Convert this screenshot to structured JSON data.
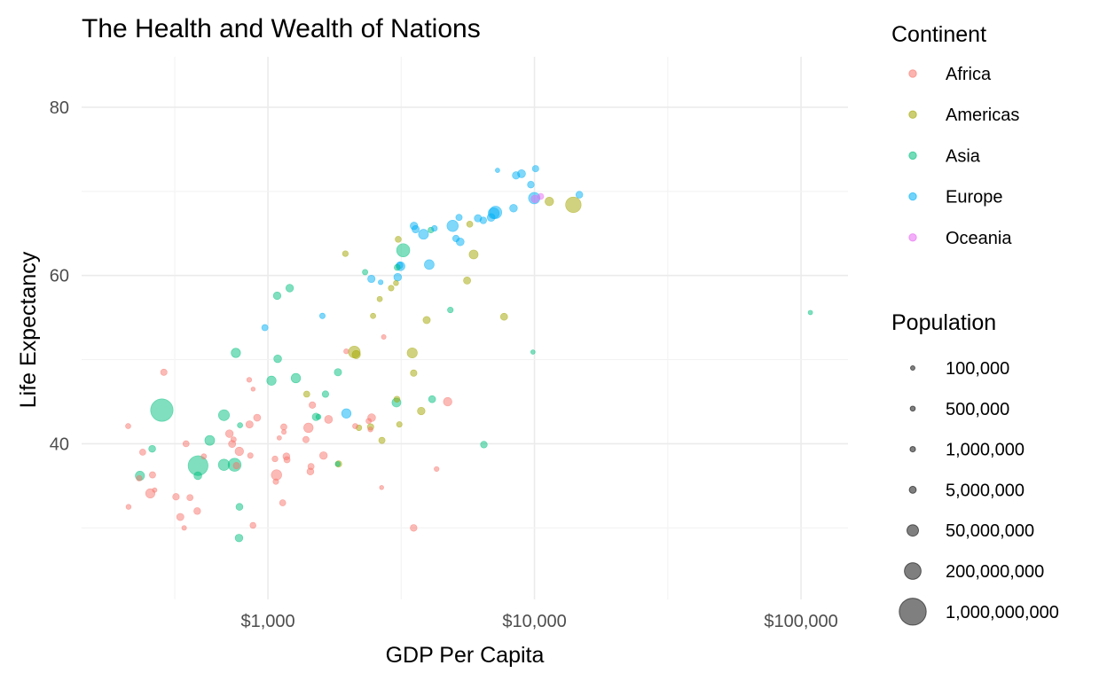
{
  "chart_data": {
    "type": "scatter",
    "title": "The Health and Wealth of Nations",
    "xlabel": "GDP Per Capita",
    "ylabel": "Life Expectancy",
    "x_scale": "log10",
    "xlim": [
      200,
      150000
    ],
    "ylim": [
      21.5,
      86
    ],
    "x_ticks": [
      1000,
      10000,
      100000
    ],
    "x_tick_labels": [
      "$1,000",
      "$10,000",
      "$100,000"
    ],
    "y_ticks": [
      40,
      60,
      80
    ],
    "y_tick_labels": [
      "40",
      "60",
      "80"
    ],
    "grid": true,
    "legend_position": "right",
    "color_legend": {
      "title": "Continent",
      "entries": [
        {
          "label": "Africa",
          "color": "#F8766D"
        },
        {
          "label": "Americas",
          "color": "#A3A500"
        },
        {
          "label": "Asia",
          "color": "#00BF7D"
        },
        {
          "label": "Europe",
          "color": "#00B0F6"
        },
        {
          "label": "Oceania",
          "color": "#E76BF3"
        }
      ]
    },
    "size_legend": {
      "title": "Population",
      "entries": [
        {
          "label": "100,000",
          "value": 100000
        },
        {
          "label": "500,000",
          "value": 500000
        },
        {
          "label": "1,000,000",
          "value": 1000000
        },
        {
          "label": "5,000,000",
          "value": 5000000
        },
        {
          "label": "50,000,000",
          "value": 50000000
        },
        {
          "label": "200,000,000",
          "value": 200000000
        },
        {
          "label": "1,000,000,000",
          "value": 1000000000
        }
      ]
    },
    "series": [
      {
        "name": "Africa",
        "points": [
          {
            "x": 2449,
            "y": 43.1,
            "pop": 9279525
          },
          {
            "x": 3521,
            "y": 30.0,
            "pop": 4232095
          },
          {
            "x": 1063,
            "y": 38.2,
            "pop": 1738315
          },
          {
            "x": 851,
            "y": 47.6,
            "pop": 442308
          },
          {
            "x": 543,
            "y": 32.0,
            "pop": 4469979
          },
          {
            "x": 339,
            "y": 39.0,
            "pop": 2445618
          },
          {
            "x": 1173,
            "y": 38.5,
            "pop": 5009067
          },
          {
            "x": 1071,
            "y": 35.5,
            "pop": 1291695
          },
          {
            "x": 1179,
            "y": 38.1,
            "pop": 2682462
          },
          {
            "x": 1103,
            "y": 40.7,
            "pop": 153936
          },
          {
            "x": 781,
            "y": 39.1,
            "pop": 14100005
          },
          {
            "x": 2126,
            "y": 42.1,
            "pop": 854885
          },
          {
            "x": 1389,
            "y": 40.5,
            "pop": 2977019
          },
          {
            "x": 2670,
            "y": 34.8,
            "pop": 63149
          },
          {
            "x": 1419,
            "y": 41.9,
            "pop": 22223309
          },
          {
            "x": 376,
            "y": 34.5,
            "pop": 216964
          },
          {
            "x": 329,
            "y": 35.9,
            "pop": 1438760
          },
          {
            "x": 362,
            "y": 34.1,
            "pop": 20860941
          },
          {
            "x": 4293,
            "y": 37.0,
            "pop": 420702
          },
          {
            "x": 485,
            "y": 30.0,
            "pop": 284320
          },
          {
            "x": 911,
            "y": 43.1,
            "pop": 5581001
          },
          {
            "x": 510,
            "y": 33.6,
            "pop": 2664249
          },
          {
            "x": 300,
            "y": 32.5,
            "pop": 580653
          },
          {
            "x": 853,
            "y": 42.3,
            "pop": 6464046
          },
          {
            "x": 299,
            "y": 42.1,
            "pop": 748747
          },
          {
            "x": 575,
            "y": 38.5,
            "pop": 863308
          },
          {
            "x": 2388,
            "y": 42.7,
            "pop": 1019729
          },
          {
            "x": 1443,
            "y": 36.7,
            "pop": 4762912
          },
          {
            "x": 369,
            "y": 36.3,
            "pop": 2917802
          },
          {
            "x": 452,
            "y": 33.7,
            "pop": 3838168
          },
          {
            "x": 743,
            "y": 40.5,
            "pop": 1022556
          },
          {
            "x": 1967,
            "y": 50.99,
            "pop": 516556
          },
          {
            "x": 1688,
            "y": 42.9,
            "pop": 9939217
          },
          {
            "x": 469,
            "y": 31.3,
            "pop": 6446316
          },
          {
            "x": 2424,
            "y": 41.7,
            "pop": 485831
          },
          {
            "x": 762,
            "y": 37.4,
            "pop": 3379468
          },
          {
            "x": 1077,
            "y": 36.3,
            "pop": 33119096
          },
          {
            "x": 2719,
            "y": 52.7,
            "pop": 257700
          },
          {
            "x": 493,
            "y": 40.0,
            "pop": 2534927
          },
          {
            "x": 880,
            "y": 46.5,
            "pop": 60011
          },
          {
            "x": 1451,
            "y": 37.3,
            "pop": 2755589
          },
          {
            "x": 879,
            "y": 30.3,
            "pop": 2143249
          },
          {
            "x": 1136,
            "y": 32.98,
            "pop": 2526994
          },
          {
            "x": 4725,
            "y": 45.0,
            "pop": 14264935
          },
          {
            "x": 1616,
            "y": 38.6,
            "pop": 8504667
          },
          {
            "x": 1148,
            "y": 41.4,
            "pop": 290243
          },
          {
            "x": 717,
            "y": 41.2,
            "pop": 8322925
          },
          {
            "x": 859,
            "y": 38.6,
            "pop": 1219113
          },
          {
            "x": 1468,
            "y": 44.6,
            "pop": 3647735
          },
          {
            "x": 734,
            "y": 39.98,
            "pop": 5824797
          },
          {
            "x": 1147,
            "y": 42.0,
            "pop": 2672000
          },
          {
            "x": 407,
            "y": 48.5,
            "pop": 3080907
          }
        ]
      },
      {
        "name": "Americas",
        "points": [
          {
            "x": 5911,
            "y": 62.5,
            "pop": 17876956
          },
          {
            "x": 2677,
            "y": 40.4,
            "pop": 2883315
          },
          {
            "x": 2109,
            "y": 50.9,
            "pop": 56602560
          },
          {
            "x": 11367,
            "y": 68.8,
            "pop": 14785584
          },
          {
            "x": 3940,
            "y": 54.7,
            "pop": 6377619
          },
          {
            "x": 2144,
            "y": 50.6,
            "pop": 12350771
          },
          {
            "x": 2627,
            "y": 57.2,
            "pop": 926317
          },
          {
            "x": 5587,
            "y": 59.4,
            "pop": 6007797
          },
          {
            "x": 1398,
            "y": 45.9,
            "pop": 2491346
          },
          {
            "x": 3522,
            "y": 48.4,
            "pop": 3548753
          },
          {
            "x": 3048,
            "y": 45.3,
            "pop": 2042865
          },
          {
            "x": 2428,
            "y": 42.0,
            "pop": 3146381
          },
          {
            "x": 1840,
            "y": 37.6,
            "pop": 3201488
          },
          {
            "x": 2195,
            "y": 41.9,
            "pop": 1517453
          },
          {
            "x": 2899,
            "y": 58.5,
            "pop": 1426095
          },
          {
            "x": 3478,
            "y": 50.8,
            "pop": 30144317
          },
          {
            "x": 3112,
            "y": 42.3,
            "pop": 1165790
          },
          {
            "x": 2480,
            "y": 55.2,
            "pop": 940080
          },
          {
            "x": 1953,
            "y": 62.6,
            "pop": 1555876
          },
          {
            "x": 3759,
            "y": 43.9,
            "pop": 8025700
          },
          {
            "x": 3082,
            "y": 64.3,
            "pop": 2227000
          },
          {
            "x": 3023,
            "y": 59.1,
            "pop": 662850
          },
          {
            "x": 13990,
            "y": 68.4,
            "pop": 157553000
          },
          {
            "x": 5717,
            "y": 66.1,
            "pop": 2252965
          },
          {
            "x": 7689,
            "y": 55.1,
            "pop": 5439568
          }
        ]
      },
      {
        "name": "Asia",
        "points": [
          {
            "x": 779,
            "y": 28.8,
            "pop": 8425333
          },
          {
            "x": 9867,
            "y": 50.9,
            "pop": 120447
          },
          {
            "x": 684,
            "y": 37.5,
            "pop": 46886859
          },
          {
            "x": 368,
            "y": 39.4,
            "pop": 4693836
          },
          {
            "x": 400,
            "y": 44.0,
            "pop": 556263527
          },
          {
            "x": 3054,
            "y": 60.96,
            "pop": 2125900
          },
          {
            "x": 547,
            "y": 37.4,
            "pop": 372000000
          },
          {
            "x": 750,
            "y": 37.5,
            "pop": 82052000
          },
          {
            "x": 3035,
            "y": 44.9,
            "pop": 17272000
          },
          {
            "x": 4130,
            "y": 45.3,
            "pop": 5441766
          },
          {
            "x": 4086,
            "y": 65.4,
            "pop": 1620914
          },
          {
            "x": 3217,
            "y": 63.0,
            "pop": 86459025
          },
          {
            "x": 1547,
            "y": 43.2,
            "pop": 607914
          },
          {
            "x": 1088,
            "y": 50.1,
            "pop": 8865488
          },
          {
            "x": 1031,
            "y": 47.5,
            "pop": 20947571
          },
          {
            "x": 108382,
            "y": 55.6,
            "pop": 160000
          },
          {
            "x": 4835,
            "y": 55.9,
            "pop": 1439529
          },
          {
            "x": 1831,
            "y": 48.5,
            "pop": 6748378
          },
          {
            "x": 786,
            "y": 42.2,
            "pop": 800663
          },
          {
            "x": 331,
            "y": 36.2,
            "pop": 20092996
          },
          {
            "x": 546,
            "y": 36.2,
            "pop": 9182536
          },
          {
            "x": 1828,
            "y": 37.6,
            "pop": 507833
          },
          {
            "x": 684,
            "y": 43.4,
            "pop": 41346560
          },
          {
            "x": 1273,
            "y": 47.8,
            "pop": 22438691
          },
          {
            "x": 6459,
            "y": 39.9,
            "pop": 4005677
          },
          {
            "x": 2315,
            "y": 60.4,
            "pop": 1127000
          },
          {
            "x": 1083,
            "y": 57.6,
            "pop": 7982342
          },
          {
            "x": 1644,
            "y": 45.9,
            "pop": 3661549
          },
          {
            "x": 1207,
            "y": 58.5,
            "pop": 8550362
          },
          {
            "x": 758,
            "y": 50.8,
            "pop": 21289402
          },
          {
            "x": 605,
            "y": 40.4,
            "pop": 26246839
          },
          {
            "x": 782,
            "y": 32.5,
            "pop": 4963829
          },
          {
            "x": 1515,
            "y": 43.2,
            "pop": 7482000
          }
        ]
      },
      {
        "name": "Europe",
        "points": [
          {
            "x": 1601,
            "y": 55.2,
            "pop": 1282697
          },
          {
            "x": 6137,
            "y": 66.8,
            "pop": 6927772
          },
          {
            "x": 8343,
            "y": 68.0,
            "pop": 8730405
          },
          {
            "x": 974,
            "y": 53.8,
            "pop": 2791000
          },
          {
            "x": 2444,
            "y": 59.6,
            "pop": 7274900
          },
          {
            "x": 3119,
            "y": 61.2,
            "pop": 3882229
          },
          {
            "x": 6876,
            "y": 66.9,
            "pop": 9125183
          },
          {
            "x": 9692,
            "y": 70.8,
            "pop": 4334000
          },
          {
            "x": 6425,
            "y": 66.55,
            "pop": 4090500
          },
          {
            "x": 7030,
            "y": 67.4,
            "pop": 42459667
          },
          {
            "x": 7144,
            "y": 67.5,
            "pop": 69145952
          },
          {
            "x": 3531,
            "y": 65.9,
            "pop": 7733250
          },
          {
            "x": 5264,
            "y": 64.0,
            "pop": 9504000
          },
          {
            "x": 7268,
            "y": 72.5,
            "pop": 147962
          },
          {
            "x": 5211,
            "y": 66.9,
            "pop": 2952156
          },
          {
            "x": 4931,
            "y": 65.9,
            "pop": 47666000
          },
          {
            "x": 2648,
            "y": 59.2,
            "pop": 413834
          },
          {
            "x": 8941,
            "y": 72.1,
            "pop": 10381988
          },
          {
            "x": 10095,
            "y": 72.7,
            "pop": 3327728
          },
          {
            "x": 4029,
            "y": 61.3,
            "pop": 25730551
          },
          {
            "x": 3068,
            "y": 59.8,
            "pop": 8526050
          },
          {
            "x": 3144,
            "y": 61.1,
            "pop": 16630000
          },
          {
            "x": 3581,
            "y": 65.5,
            "pop": 6860147
          },
          {
            "x": 5074,
            "y": 64.4,
            "pop": 3558137
          },
          {
            "x": 4215,
            "y": 65.6,
            "pop": 1489518
          },
          {
            "x": 3834,
            "y": 64.9,
            "pop": 28549870
          },
          {
            "x": 8528,
            "y": 71.9,
            "pop": 7124673
          },
          {
            "x": 14734,
            "y": 69.6,
            "pop": 4815000
          },
          {
            "x": 1969,
            "y": 43.6,
            "pop": 22235677
          },
          {
            "x": 9980,
            "y": 69.2,
            "pop": 50430000
          }
        ]
      },
      {
        "name": "Oceania",
        "points": [
          {
            "x": 10040,
            "y": 69.1,
            "pop": 8691212
          },
          {
            "x": 10557,
            "y": 69.4,
            "pop": 1994794
          }
        ]
      }
    ]
  }
}
